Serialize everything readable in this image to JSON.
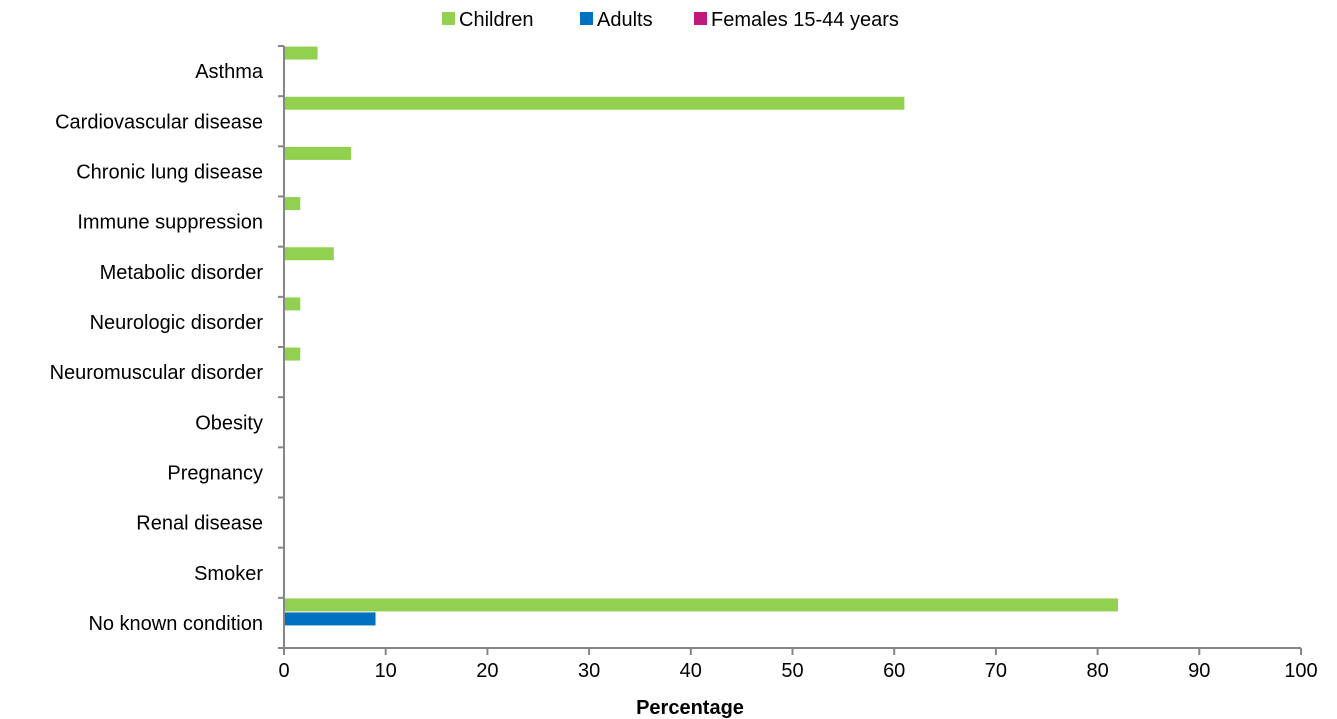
{
  "chart_data": {
    "type": "bar",
    "orientation": "horizontal",
    "categories": [
      "Asthma",
      "Cardiovascular disease",
      "Chronic lung disease",
      "Immune suppression",
      "Metabolic disorder",
      "Neurologic disorder",
      "Neuromuscular disorder",
      "Obesity",
      "Pregnancy",
      "Renal disease",
      "Smoker",
      "No known condition"
    ],
    "series": [
      {
        "name": "Children",
        "color": "#92d050",
        "values": [
          3.3,
          61,
          6.6,
          1.6,
          4.9,
          1.6,
          1.6,
          0,
          0,
          0,
          0,
          82
        ]
      },
      {
        "name": "Adults",
        "color": "#0070c0",
        "values": [
          0,
          0,
          0,
          0,
          0,
          0,
          0,
          0,
          0,
          0,
          0,
          9
        ]
      },
      {
        "name": "Females 15-44 years",
        "color": "#c0187b",
        "values": [
          0,
          0,
          0,
          0,
          0,
          0,
          0,
          0,
          0,
          0,
          0,
          0
        ]
      }
    ],
    "xlabel": "Percentage",
    "xlim": [
      0,
      100
    ],
    "xticks": [
      0,
      10,
      20,
      30,
      40,
      50,
      60,
      70,
      80,
      90,
      100
    ],
    "grid": false,
    "legend_position": "top"
  }
}
